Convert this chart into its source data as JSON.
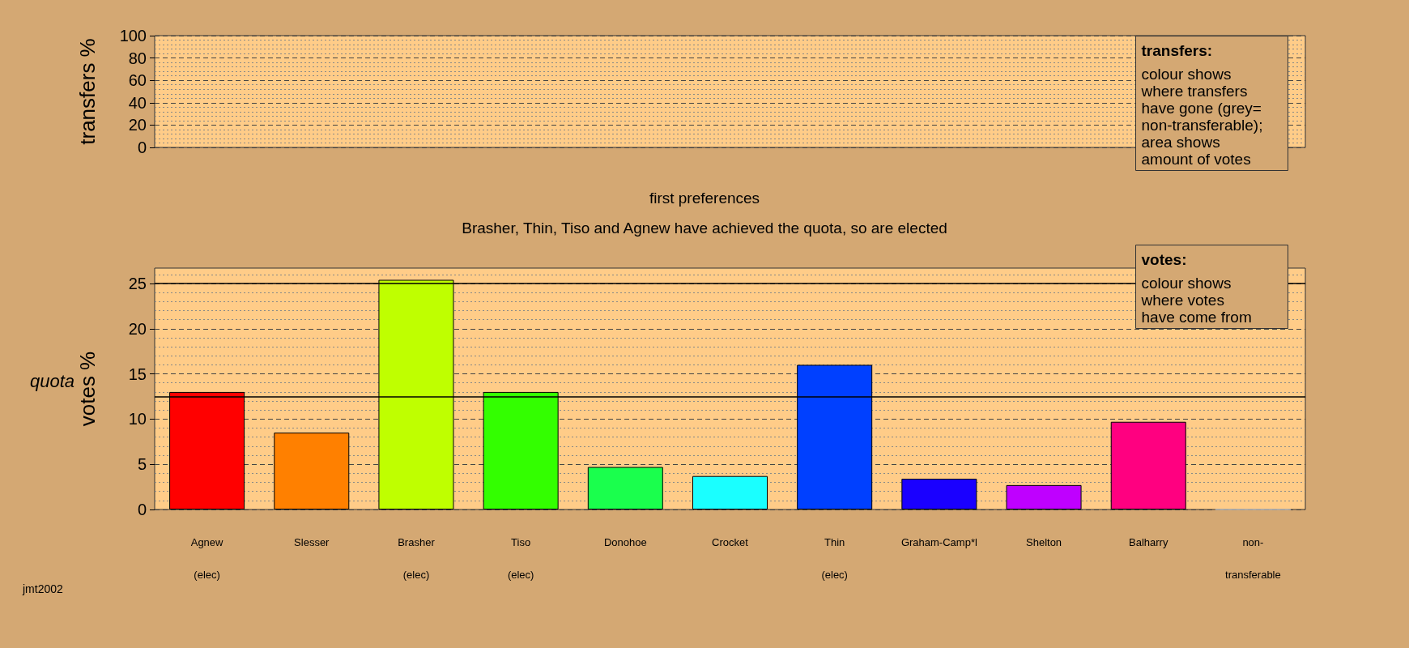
{
  "chart_data": [
    {
      "type": "bar",
      "ylabel": "transfers %",
      "categories": [
        null,
        null,
        null,
        null,
        null,
        null,
        null,
        null,
        null,
        null,
        null
      ],
      "values": [
        null,
        null,
        null,
        null,
        null,
        null,
        null,
        null,
        null,
        null,
        null
      ],
      "ylim": [
        0,
        100
      ],
      "yticks": [
        0,
        20,
        40,
        60,
        80,
        100
      ],
      "grid": true,
      "annotations": [
        "transfers:\ncolour shows\nwhere transfers\nhave gone (grey=\nnon-transferable);\narea shows\namount of votes"
      ]
    },
    {
      "type": "bar",
      "title": "first preferences",
      "subtitle": "Brasher, Thin, Tiso and Agnew have achieved the quota, so are elected",
      "ylabel": "votes %",
      "categories": [
        "Agnew\n(elec)",
        "Slesser",
        "Brasher\n(elec)",
        "Tiso\n(elec)",
        "Donohoe",
        "Crocket",
        "Thin\n(elec)",
        "Graham-Camp*l",
        "Shelton",
        "Balharry",
        "non-\ntransferable"
      ],
      "values": [
        13.0,
        8.5,
        25.4,
        13.0,
        4.7,
        3.7,
        16.0,
        3.4,
        2.7,
        9.7,
        0
      ],
      "colors": [
        "#ff0000",
        "#ff8000",
        "#bfff00",
        "#33ff00",
        "#1aff4d",
        "#1affff",
        "#0040ff",
        "#1a00ff",
        "#bf00ff",
        "#ff0080",
        "#bebebe"
      ],
      "ylim": [
        0,
        26.7
      ],
      "yticks": [
        0,
        5,
        10,
        15,
        20,
        25
      ],
      "grid": true,
      "ref_lines": [
        {
          "axis": "y",
          "value": 12.5,
          "label": "quota"
        },
        {
          "axis": "y",
          "value": 25,
          "label": null
        }
      ],
      "annotations": [
        "votes:\ncolour shows\nwhere votes\nhave come from",
        "jmt2002"
      ]
    }
  ]
}
